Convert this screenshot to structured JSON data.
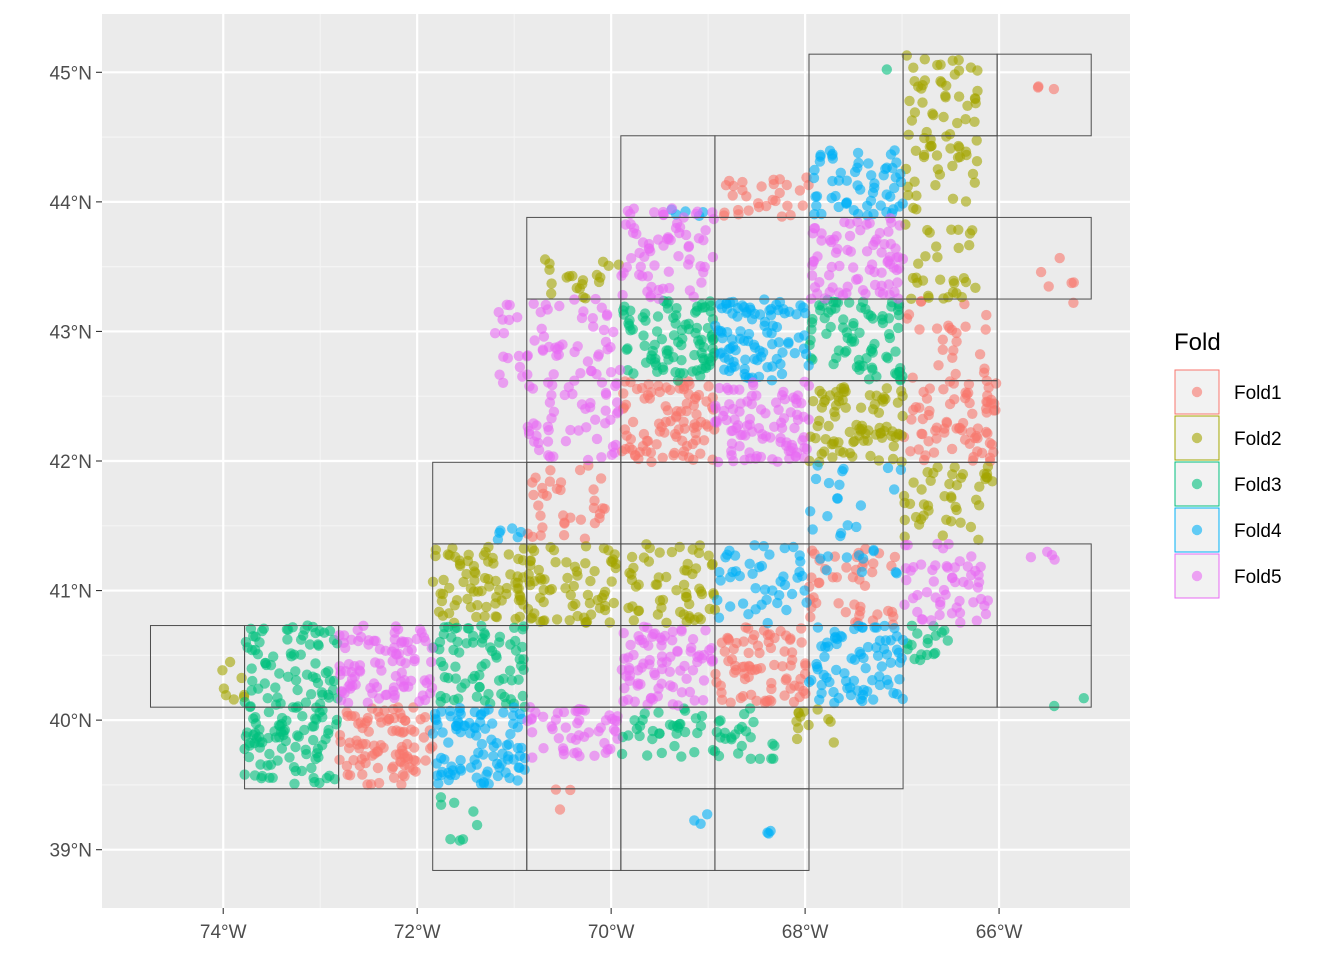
{
  "chart_data": {
    "type": "scatter",
    "title": "",
    "xlabel": "",
    "ylabel": "",
    "xlim": [
      -75.25,
      -64.65
    ],
    "ylim": [
      38.55,
      45.45
    ],
    "grid": true,
    "legend_position": "right",
    "x_ticks": [
      {
        "value": -74,
        "label": "74°W"
      },
      {
        "value": -72,
        "label": "72°W"
      },
      {
        "value": -70,
        "label": "70°W"
      },
      {
        "value": -68,
        "label": "68°W"
      },
      {
        "value": -66,
        "label": "66°W"
      }
    ],
    "y_ticks": [
      {
        "value": 39,
        "label": "39°N"
      },
      {
        "value": 40,
        "label": "40°N"
      },
      {
        "value": 41,
        "label": "41°N"
      },
      {
        "value": 42,
        "label": "42°N"
      },
      {
        "value": 43,
        "label": "43°N"
      },
      {
        "value": 44,
        "label": "44°N"
      },
      {
        "value": 45,
        "label": "45°N"
      }
    ],
    "legend": {
      "title": "Fold",
      "entries": [
        {
          "name": "Fold1",
          "color": "#F8766D"
        },
        {
          "name": "Fold2",
          "color": "#A3A500"
        },
        {
          "name": "Fold3",
          "color": "#00BF7D"
        },
        {
          "name": "Fold4",
          "color": "#00B0F6"
        },
        {
          "name": "Fold5",
          "color": "#E76BF3"
        }
      ]
    },
    "grid_cells_note": "outlined spatial blocks, each [lon_min, lat_min, lon_max, lat_max] in degrees",
    "grid_cells": [
      [
        -74.75,
        40.1,
        -73.78,
        40.73
      ],
      [
        -73.78,
        40.1,
        -72.81,
        40.73
      ],
      [
        -72.81,
        40.1,
        -71.84,
        40.73
      ],
      [
        -73.78,
        39.47,
        -72.81,
        40.1
      ],
      [
        -72.81,
        39.47,
        -71.84,
        40.1
      ],
      [
        -71.84,
        39.47,
        -70.87,
        40.1
      ],
      [
        -70.87,
        39.47,
        -69.9,
        40.1
      ],
      [
        -69.9,
        39.47,
        -68.93,
        40.1
      ],
      [
        -68.93,
        39.47,
        -67.96,
        40.1
      ],
      [
        -67.96,
        39.47,
        -66.99,
        40.1
      ],
      [
        -71.84,
        38.84,
        -70.87,
        39.47
      ],
      [
        -70.87,
        38.84,
        -69.9,
        39.47
      ],
      [
        -69.9,
        38.84,
        -68.93,
        39.47
      ],
      [
        -68.93,
        38.84,
        -67.96,
        39.47
      ],
      [
        -71.84,
        40.1,
        -70.87,
        40.73
      ],
      [
        -70.87,
        40.1,
        -69.9,
        40.73
      ],
      [
        -69.9,
        40.1,
        -68.93,
        40.73
      ],
      [
        -68.93,
        40.1,
        -67.96,
        40.73
      ],
      [
        -67.96,
        40.1,
        -66.99,
        40.73
      ],
      [
        -66.99,
        40.1,
        -66.02,
        40.73
      ],
      [
        -66.02,
        40.1,
        -65.05,
        40.73
      ],
      [
        -71.84,
        40.73,
        -70.87,
        41.36
      ],
      [
        -70.87,
        40.73,
        -69.9,
        41.36
      ],
      [
        -69.9,
        40.73,
        -68.93,
        41.36
      ],
      [
        -68.93,
        40.73,
        -67.96,
        41.36
      ],
      [
        -67.96,
        40.73,
        -66.99,
        41.36
      ],
      [
        -66.99,
        40.73,
        -66.02,
        41.36
      ],
      [
        -66.02,
        40.73,
        -65.05,
        41.36
      ],
      [
        -71.84,
        41.36,
        -70.87,
        41.99
      ],
      [
        -70.87,
        41.36,
        -69.9,
        41.99
      ],
      [
        -69.9,
        41.36,
        -68.93,
        41.99
      ],
      [
        -68.93,
        41.36,
        -67.96,
        41.99
      ],
      [
        -67.96,
        41.36,
        -66.99,
        41.99
      ],
      [
        -66.99,
        41.36,
        -66.02,
        41.99
      ],
      [
        -70.87,
        41.99,
        -69.9,
        42.62
      ],
      [
        -69.9,
        41.99,
        -68.93,
        42.62
      ],
      [
        -68.93,
        41.99,
        -67.96,
        42.62
      ],
      [
        -67.96,
        41.99,
        -66.99,
        42.62
      ],
      [
        -66.99,
        41.99,
        -66.02,
        42.62
      ],
      [
        -70.87,
        42.62,
        -69.9,
        43.25
      ],
      [
        -69.9,
        42.62,
        -68.93,
        43.25
      ],
      [
        -68.93,
        42.62,
        -67.96,
        43.25
      ],
      [
        -67.96,
        42.62,
        -66.99,
        43.25
      ],
      [
        -66.99,
        42.62,
        -66.02,
        43.25
      ],
      [
        -70.87,
        43.25,
        -69.9,
        43.88
      ],
      [
        -69.9,
        43.25,
        -68.93,
        43.88
      ],
      [
        -68.93,
        43.25,
        -67.96,
        43.88
      ],
      [
        -67.96,
        43.25,
        -66.99,
        43.88
      ],
      [
        -66.99,
        43.25,
        -66.02,
        43.88
      ],
      [
        -66.02,
        43.25,
        -65.05,
        43.88
      ],
      [
        -69.9,
        43.88,
        -68.93,
        44.51
      ],
      [
        -68.93,
        43.88,
        -67.96,
        44.51
      ],
      [
        -67.96,
        43.88,
        -66.99,
        44.51
      ],
      [
        -66.99,
        43.88,
        -66.02,
        44.51
      ],
      [
        -67.96,
        44.51,
        -66.99,
        45.14
      ],
      [
        -66.99,
        44.51,
        -66.02,
        45.14
      ],
      [
        -66.02,
        44.51,
        -65.05,
        45.14
      ]
    ],
    "point_clusters_note": "scatter points grouped by fold: each cluster is [lon_min, lat_min, lon_max, lat_max, point_count]; points are spread within each region",
    "fold_clusters": {
      "Fold1": [
        [
          -72.81,
          39.5,
          -71.84,
          40.1,
          95
        ],
        [
          -69.9,
          41.99,
          -68.93,
          42.62,
          95
        ],
        [
          -68.93,
          40.13,
          -67.96,
          40.73,
          80
        ],
        [
          -66.99,
          41.99,
          -66.02,
          42.62,
          75
        ],
        [
          -67.96,
          40.73,
          -66.99,
          41.36,
          45
        ],
        [
          -70.87,
          41.4,
          -70.05,
          41.99,
          35
        ],
        [
          -68.85,
          43.88,
          -67.96,
          44.2,
          30
        ],
        [
          -66.99,
          42.62,
          -66.1,
          43.25,
          25
        ],
        [
          -65.6,
          43.2,
          -65.05,
          43.6,
          6
        ],
        [
          -65.6,
          44.8,
          -65.4,
          44.95,
          3
        ],
        [
          -70.65,
          39.25,
          -70.4,
          39.5,
          3
        ]
      ],
      "Fold2": [
        [
          -71.84,
          40.75,
          -70.87,
          41.36,
          75
        ],
        [
          -70.87,
          40.75,
          -69.9,
          41.36,
          70
        ],
        [
          -69.9,
          40.75,
          -68.93,
          41.36,
          60
        ],
        [
          -67.96,
          41.99,
          -66.99,
          42.62,
          85
        ],
        [
          -66.99,
          43.25,
          -66.2,
          44.4,
          55
        ],
        [
          -66.99,
          44.4,
          -66.2,
          45.14,
          50
        ],
        [
          -66.99,
          41.36,
          -66.05,
          41.99,
          45
        ],
        [
          -70.7,
          43.25,
          -69.9,
          43.6,
          20
        ],
        [
          -74.05,
          40.1,
          -73.78,
          40.45,
          8
        ],
        [
          -68.1,
          39.8,
          -67.7,
          40.1,
          12
        ]
      ],
      "Fold3": [
        [
          -73.78,
          39.5,
          -72.81,
          40.1,
          85
        ],
        [
          -73.78,
          40.1,
          -72.81,
          40.73,
          75
        ],
        [
          -71.84,
          40.1,
          -70.87,
          40.73,
          75
        ],
        [
          -69.9,
          42.62,
          -68.93,
          43.25,
          95
        ],
        [
          -67.96,
          42.62,
          -66.99,
          43.25,
          80
        ],
        [
          -69.9,
          39.7,
          -68.93,
          40.1,
          35
        ],
        [
          -68.93,
          39.7,
          -68.3,
          40.1,
          25
        ],
        [
          -66.99,
          40.3,
          -66.5,
          40.73,
          18
        ],
        [
          -71.84,
          39.05,
          -71.3,
          39.45,
          8
        ],
        [
          -67.2,
          45.0,
          -67.0,
          45.14,
          1
        ],
        [
          -66.1,
          40.1,
          -65.1,
          40.25,
          2
        ]
      ],
      "Fold4": [
        [
          -71.84,
          39.5,
          -70.87,
          40.1,
          95
        ],
        [
          -68.93,
          42.62,
          -67.96,
          43.25,
          95
        ],
        [
          -67.96,
          40.13,
          -66.99,
          40.73,
          80
        ],
        [
          -67.96,
          43.88,
          -66.99,
          44.4,
          60
        ],
        [
          -68.93,
          40.73,
          -67.96,
          41.36,
          45
        ],
        [
          -67.96,
          41.1,
          -66.99,
          41.99,
          30
        ],
        [
          -71.3,
          41.36,
          -70.9,
          41.5,
          6
        ],
        [
          -69.2,
          39.2,
          -69.0,
          39.4,
          3
        ],
        [
          -68.4,
          39.1,
          -68.25,
          39.15,
          3
        ],
        [
          -69.4,
          43.88,
          -68.93,
          43.95,
          5
        ]
      ],
      "Fold5": [
        [
          -72.81,
          40.13,
          -71.84,
          40.73,
          95
        ],
        [
          -70.87,
          41.99,
          -69.9,
          43.25,
          100
        ],
        [
          -68.93,
          41.99,
          -67.96,
          42.62,
          95
        ],
        [
          -69.9,
          40.1,
          -68.93,
          40.73,
          85
        ],
        [
          -67.96,
          43.25,
          -66.99,
          43.88,
          80
        ],
        [
          -69.9,
          43.25,
          -68.93,
          43.95,
          70
        ],
        [
          -70.87,
          39.7,
          -69.9,
          40.1,
          50
        ],
        [
          -66.99,
          40.75,
          -66.1,
          41.36,
          55
        ],
        [
          -71.2,
          42.6,
          -70.87,
          43.25,
          15
        ],
        [
          -65.8,
          41.2,
          -65.4,
          41.35,
          4
        ]
      ]
    }
  }
}
